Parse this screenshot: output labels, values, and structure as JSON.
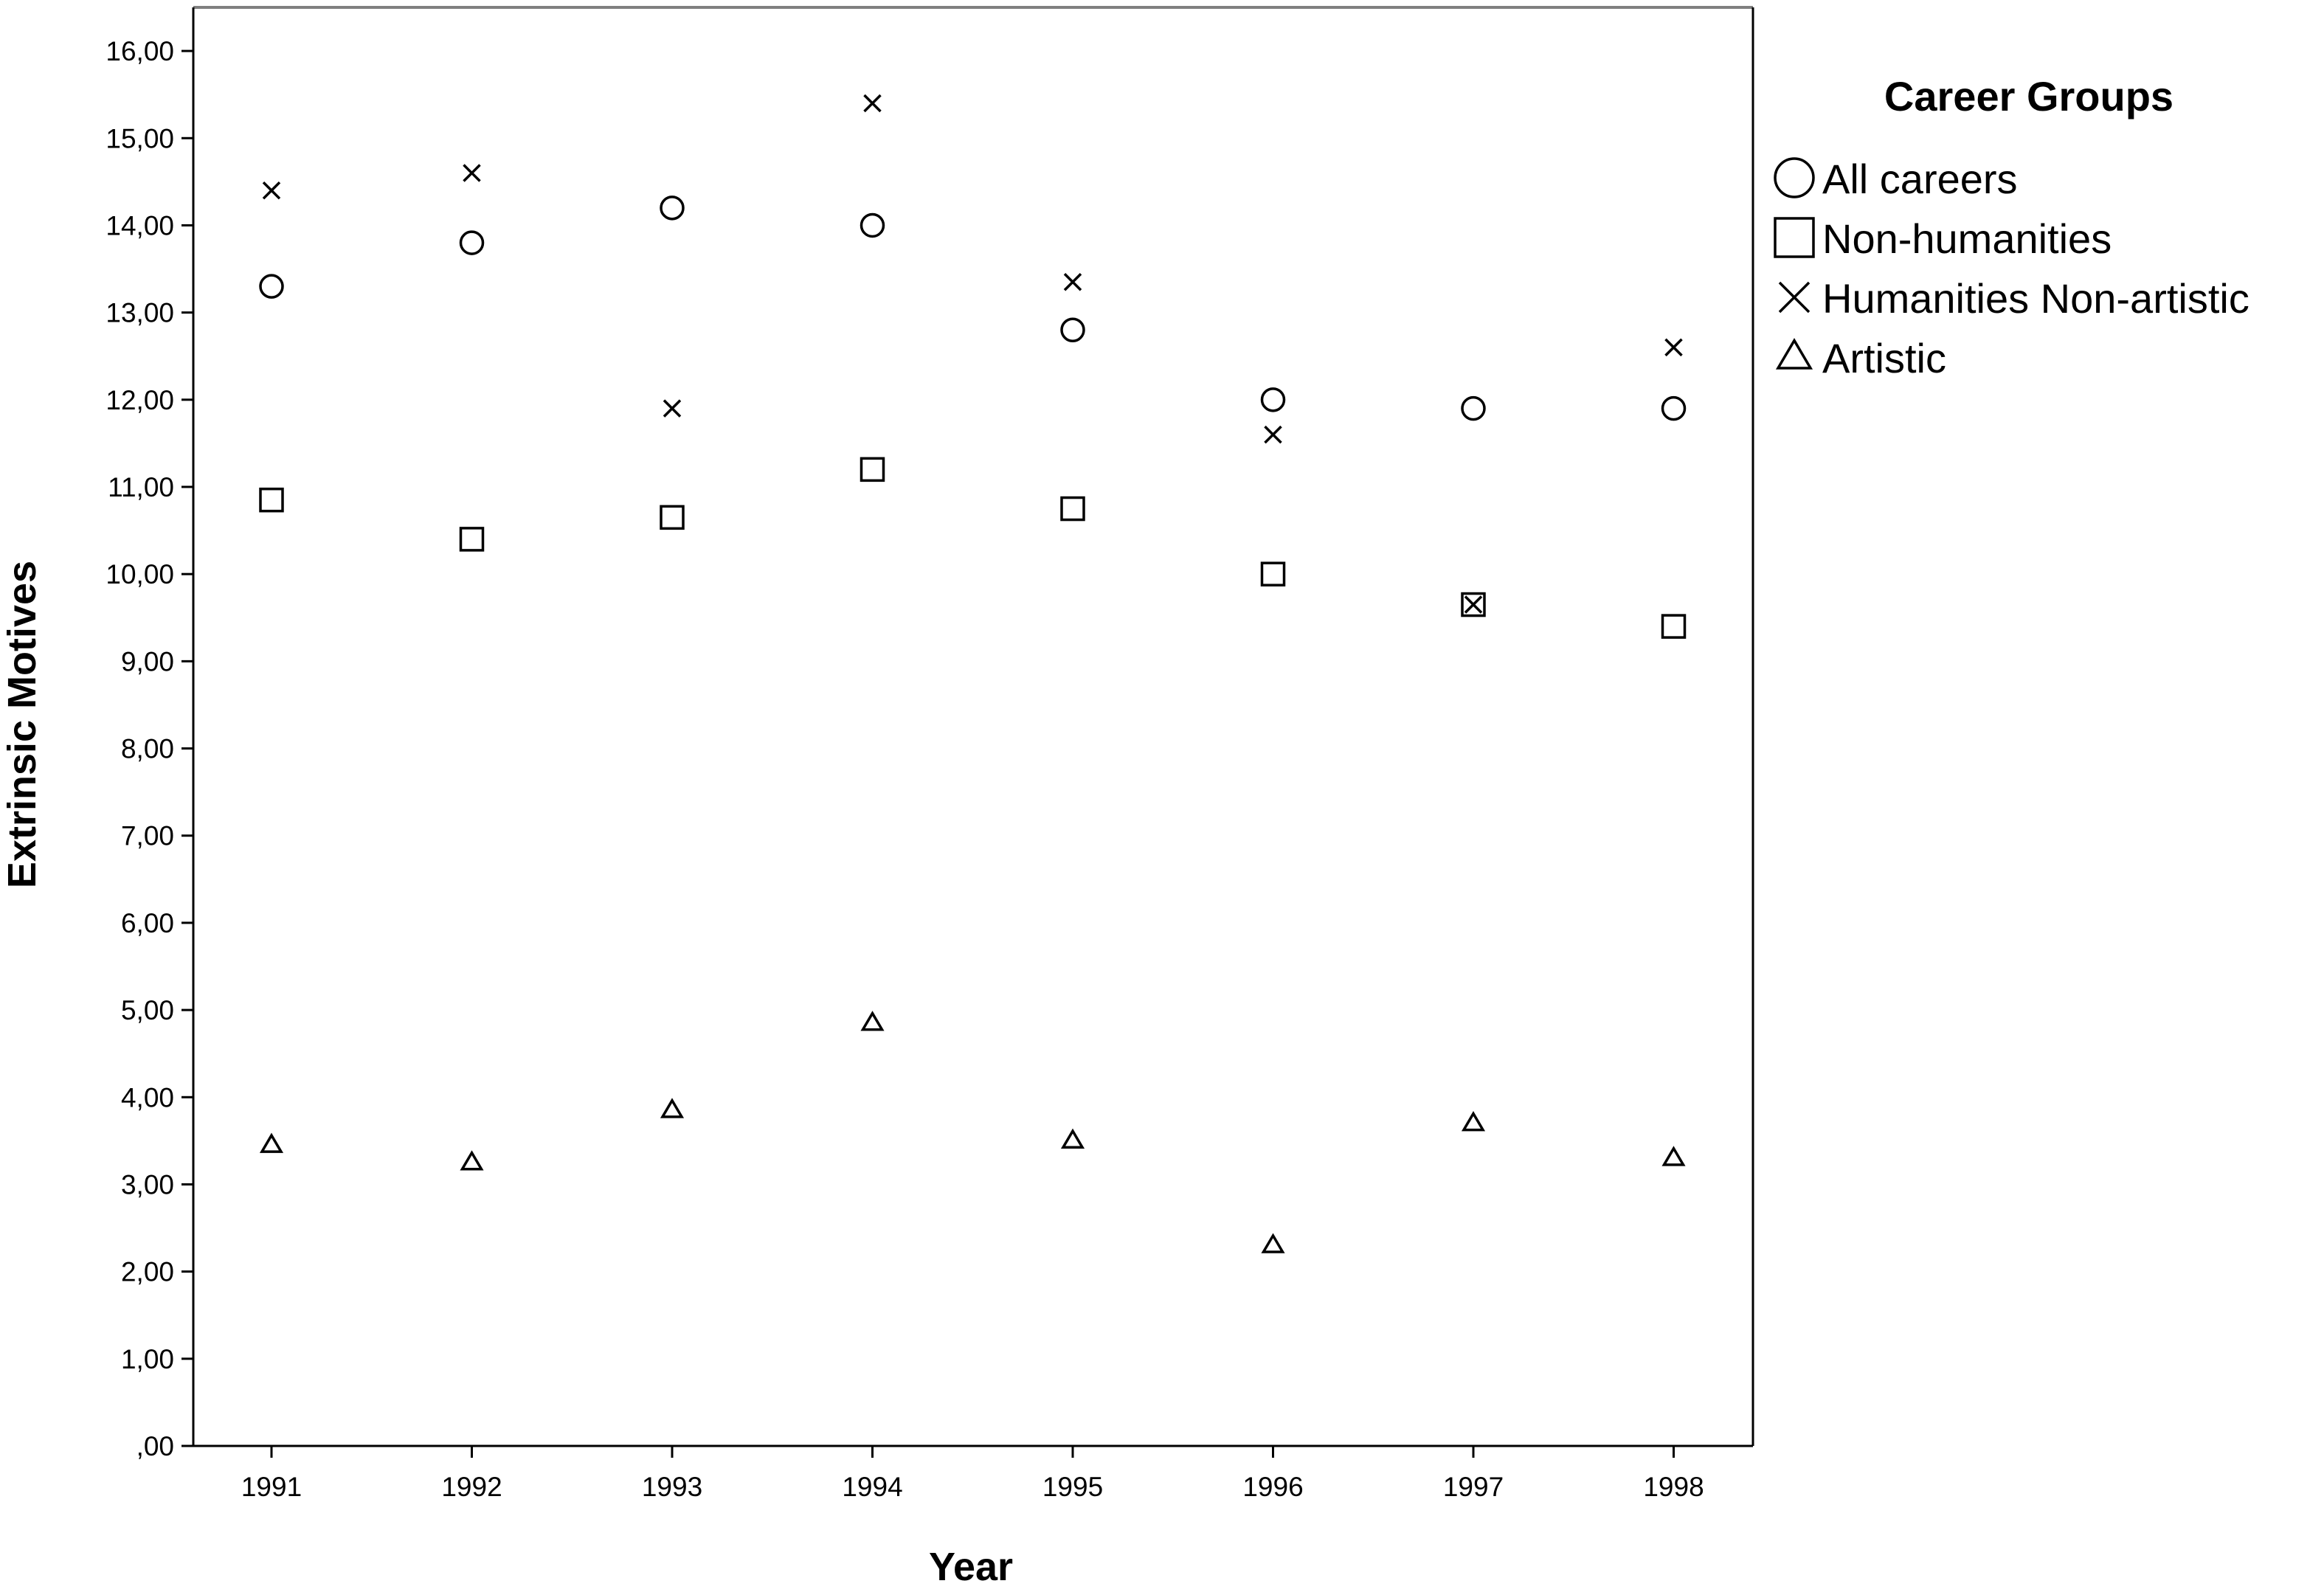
{
  "chart_data": {
    "type": "scatter",
    "xlabel": "Year",
    "ylabel": "Extrinsic Motives",
    "x": [
      "1991",
      "1992",
      "1993",
      "1994",
      "1995",
      "1996",
      "1997",
      "1998"
    ],
    "ylim": [
      0,
      16.5
    ],
    "yticks": [
      ",00",
      "1,00",
      "2,00",
      "3,00",
      "4,00",
      "5,00",
      "6,00",
      "7,00",
      "8,00",
      "9,00",
      "10,00",
      "11,00",
      "12,00",
      "13,00",
      "14,00",
      "15,00",
      "16,00"
    ],
    "grid": false,
    "legend": {
      "title": "Career Groups",
      "position": "right"
    },
    "series": [
      {
        "name": "All careers",
        "marker": "circle",
        "values": [
          13.3,
          13.8,
          14.2,
          14.0,
          12.8,
          12.0,
          11.9,
          11.9
        ]
      },
      {
        "name": "Non-humanities",
        "marker": "square",
        "values": [
          10.85,
          10.4,
          10.65,
          11.2,
          10.75,
          10.0,
          9.65,
          9.4
        ]
      },
      {
        "name": "Humanities Non-artistic",
        "marker": "x",
        "values": [
          14.4,
          14.6,
          11.9,
          15.4,
          13.35,
          11.6,
          9.65,
          12.6
        ]
      },
      {
        "name": "Artistic",
        "marker": "triangle",
        "values": [
          3.45,
          3.25,
          3.85,
          4.85,
          3.5,
          2.3,
          3.7,
          3.3
        ]
      }
    ],
    "colors": {
      "marker": "#000000",
      "axis": "#000000",
      "frame": "#808080"
    }
  }
}
